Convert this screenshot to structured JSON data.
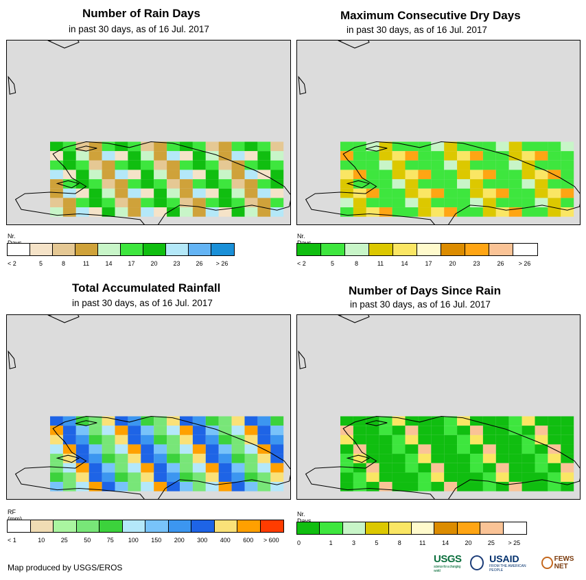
{
  "footer": "Map produced by USGS/EROS",
  "logos": {
    "usgs": "USGS",
    "usgs_tagline": "science for a changing world",
    "usaid": "USAID",
    "usaid_tagline": "FROM THE AMERICAN PEOPLE",
    "fews": "FEWS NET"
  },
  "panels": [
    {
      "title": "Number of Rain Days",
      "subtitle": "in past 30 days, as of 16 Jul. 2017",
      "legend_title": "Nr. Days",
      "legend_colors": [
        "#ffffff",
        "#f5e3c8",
        "#e5c894",
        "#cfa23a",
        "#c8f5c8",
        "#3ee63e",
        "#10be10",
        "#b4e8f8",
        "#64b4f4",
        "#1a90d8"
      ],
      "legend_labels": [
        "< 2",
        "5",
        "8",
        "11",
        "14",
        "17",
        "20",
        "23",
        "26",
        "> 26"
      ],
      "fill_colors": [
        "#10be10",
        "#3ee63e",
        "#c8f5c8",
        "#e5c894",
        "#cfa23a",
        "#b4e8f8",
        "#3ee63e",
        "#f5e3c8"
      ]
    },
    {
      "title": "Maximum Consecutive Dry Days",
      "subtitle": "in past 30 days, as of 16 Jul. 2017",
      "legend_title": "Nr. Days",
      "legend_colors": [
        "#10be10",
        "#3ee63e",
        "#c8f5c8",
        "#dcc800",
        "#fae664",
        "#fffacc",
        "#dc8c00",
        "#ffa514",
        "#fac396",
        "#ffffff"
      ],
      "legend_labels": [
        "< 2",
        "5",
        "8",
        "11",
        "14",
        "17",
        "20",
        "23",
        "26",
        "> 26"
      ],
      "fill_colors": [
        "#3ee63e",
        "#3ee63e",
        "#3ee63e",
        "#c8f5c8",
        "#dcc800",
        "#fae664",
        "#3ee63e",
        "#ffa514"
      ]
    },
    {
      "title": "Total Accumulated Rainfall",
      "subtitle": "in past 30 days, as of 16 Jul. 2017",
      "legend_title": "RF (mm)",
      "legend_colors": [
        "#ffffff",
        "#f0dcb4",
        "#aaf5a0",
        "#78e678",
        "#3cd23c",
        "#b4e8fa",
        "#78c3fa",
        "#3c96f0",
        "#1e64e6",
        "#fae178",
        "#ffa000",
        "#ff3c00"
      ],
      "legend_labels": [
        "< 1",
        "10",
        "25",
        "50",
        "75",
        "100",
        "150",
        "200",
        "300",
        "400",
        "600",
        "> 600"
      ],
      "fill_colors": [
        "#1e64e6",
        "#3c96f0",
        "#78c3fa",
        "#3cd23c",
        "#78e678",
        "#b4e8fa",
        "#fae178",
        "#ffa000"
      ]
    },
    {
      "title": "Number of Days Since Rain",
      "subtitle": "in past 30 days, as of 16 Jul. 2017",
      "legend_title": "Nr. Days",
      "legend_colors": [
        "#10be10",
        "#3ee63e",
        "#c8f5c8",
        "#dcc800",
        "#fae664",
        "#fffacc",
        "#dc8c00",
        "#ffa514",
        "#fac396",
        "#ffffff"
      ],
      "legend_labels": [
        "0",
        "1",
        "3",
        "5",
        "8",
        "11",
        "14",
        "20",
        "25",
        "> 25"
      ],
      "fill_colors": [
        "#10be10",
        "#10be10",
        "#10be10",
        "#10be10",
        "#3ee63e",
        "#10be10",
        "#fae664",
        "#fac396"
      ]
    }
  ]
}
